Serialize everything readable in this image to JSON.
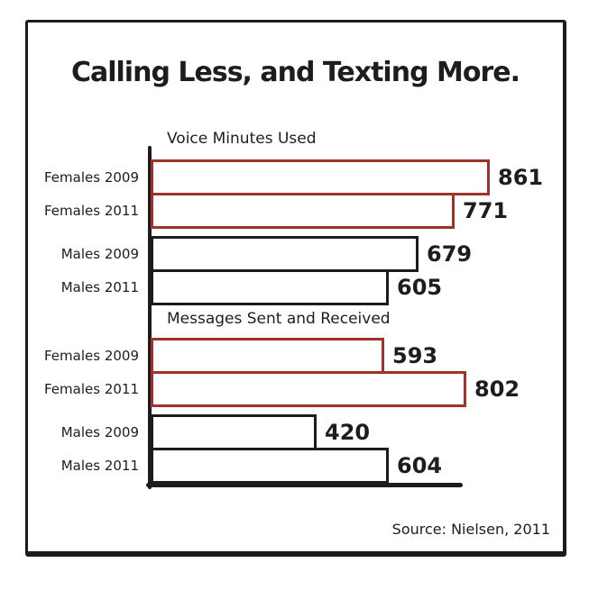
{
  "colors": {
    "female_bar": "#a0322a",
    "male_bar": "#1c1c1c",
    "axis": "#1c1c1c",
    "text": "#1d1d1b",
    "background": "#ffffff"
  },
  "chart_data": {
    "type": "bar",
    "orientation": "horizontal",
    "title": "Calling Less, and Texting More.",
    "source": "Source: Nielsen, 2011",
    "value_labels_shown": true,
    "axis_ticks_shown": false,
    "grid": false,
    "legend": "none",
    "xlim": [
      0,
      900
    ],
    "groups": [
      {
        "label": "Voice Minutes Used",
        "bars": [
          {
            "label": "Females 2009",
            "value": 861,
            "series": "female"
          },
          {
            "label": "Females 2011",
            "value": 771,
            "series": "female"
          },
          {
            "label": "Males 2009",
            "value": 679,
            "series": "male"
          },
          {
            "label": "Males 2011",
            "value": 605,
            "series": "male"
          }
        ]
      },
      {
        "label": "Messages Sent and Received",
        "bars": [
          {
            "label": "Females 2009",
            "value": 593,
            "series": "female"
          },
          {
            "label": "Females 2011",
            "value": 802,
            "series": "female"
          },
          {
            "label": "Males 2009",
            "value": 420,
            "series": "male"
          },
          {
            "label": "Males 2011",
            "value": 604,
            "series": "male"
          }
        ]
      }
    ]
  }
}
